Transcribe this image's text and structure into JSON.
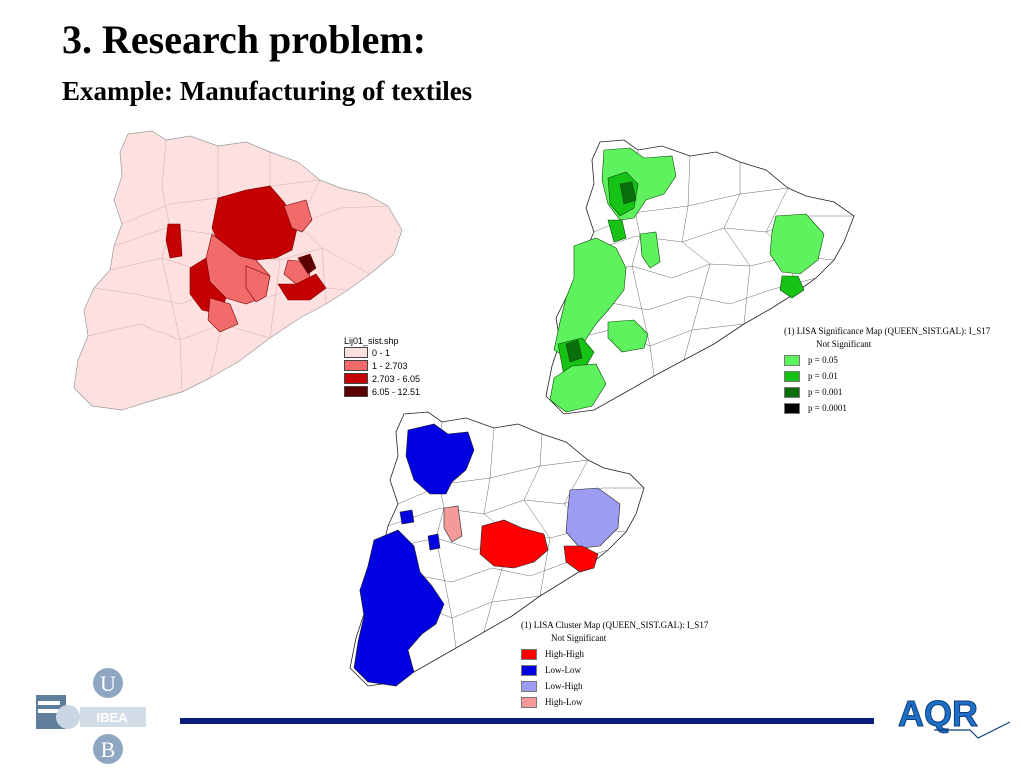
{
  "slide": {
    "title": "3. Research problem:",
    "subtitle": "Example: Manufacturing of textiles"
  },
  "map1_legend": {
    "title": "Lij01_sist.shp",
    "items": [
      {
        "label": "0 - 1",
        "color": "#fde0e0"
      },
      {
        "label": "1 - 2.703",
        "color": "#f26b6b"
      },
      {
        "label": "2.703 - 6.05",
        "color": "#c40000"
      },
      {
        "label": "6.05 - 12.51",
        "color": "#5a0000"
      }
    ]
  },
  "map2_legend": {
    "title": "(1) LISA Significance Map (QUEEN_SIST.GAL): I_S17",
    "items": [
      {
        "label": "Not Significant",
        "color": "#ffffff"
      },
      {
        "label": "p = 0.05",
        "color": "#5ef25e"
      },
      {
        "label": "p = 0.01",
        "color": "#16c216"
      },
      {
        "label": "p = 0.001",
        "color": "#0a6e0a"
      },
      {
        "label": "p = 0.0001",
        "color": "#000000"
      }
    ]
  },
  "map3_legend": {
    "title": "(1) LISA Cluster Map (QUEEN_SIST.GAL): I_S17",
    "items": [
      {
        "label": "Not Significant",
        "color": "#ffffff"
      },
      {
        "label": "High-High",
        "color": "#ff0000"
      },
      {
        "label": "Low-Low",
        "color": "#0000e0"
      },
      {
        "label": "Low-High",
        "color": "#9c9cf2"
      },
      {
        "label": "High-Low",
        "color": "#f59a9a"
      }
    ]
  },
  "logos": {
    "ub_top": "U",
    "ub_bottom": "B",
    "ub_side": "IBEA",
    "aqr": "AQR"
  },
  "colors": {
    "footer_bar": "#0a1d7a",
    "aqr_blue": "#1c6fc4"
  }
}
